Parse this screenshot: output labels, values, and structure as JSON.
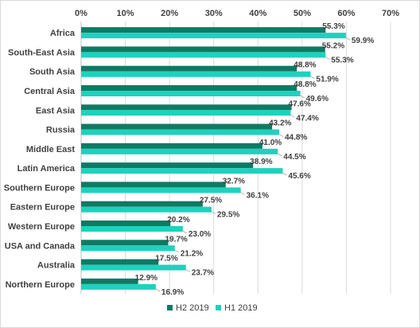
{
  "chart_data": {
    "type": "bar",
    "orientation": "horizontal",
    "title": "",
    "xlabel": "",
    "ylabel": "",
    "xlim": [
      0,
      70
    ],
    "x_ticks": [
      0,
      10,
      20,
      30,
      40,
      50,
      60,
      70
    ],
    "x_tick_labels": [
      "0%",
      "10%",
      "20%",
      "30%",
      "40%",
      "50%",
      "60%",
      "70%"
    ],
    "x_axis_position": "top",
    "grid": true,
    "legend_position": "bottom",
    "categories": [
      "Africa",
      "South-East Asia",
      "South Asia",
      "Central Asia",
      "East Asia",
      "Russia",
      "Middle East",
      "Latin America",
      "Southern Europe",
      "Eastern Europe",
      "Western Europe",
      "USA and Canada",
      "Australia",
      "Northern Europe"
    ],
    "series": [
      {
        "name": "H2 2019",
        "color": "#0f7a63",
        "values": [
          55.3,
          55.2,
          48.8,
          48.8,
          47.6,
          43.2,
          41.0,
          38.9,
          32.7,
          27.5,
          20.2,
          19.7,
          17.5,
          12.9
        ],
        "labels": [
          "55.3%",
          "55.2%",
          "48.8%",
          "48.8%",
          "47.6%",
          "43.2%",
          "41.0%",
          "38.9%",
          "32.7%",
          "27.5%",
          "20.2%",
          "19.7%",
          "17.5%",
          "12.9%"
        ]
      },
      {
        "name": "H1 2019",
        "color": "#1fd1bd",
        "values": [
          59.9,
          55.3,
          51.9,
          49.6,
          47.4,
          44.8,
          44.5,
          45.6,
          36.1,
          29.5,
          23.0,
          21.2,
          23.7,
          16.9
        ],
        "labels": [
          "59.9%",
          "55.3%",
          "51.9%",
          "49.6%",
          "47.4%",
          "44.8%",
          "44.5%",
          "45.6%",
          "36.1%",
          "29.5%",
          "23.0%",
          "21.2%",
          "23.7%",
          "16.9%"
        ]
      }
    ]
  }
}
